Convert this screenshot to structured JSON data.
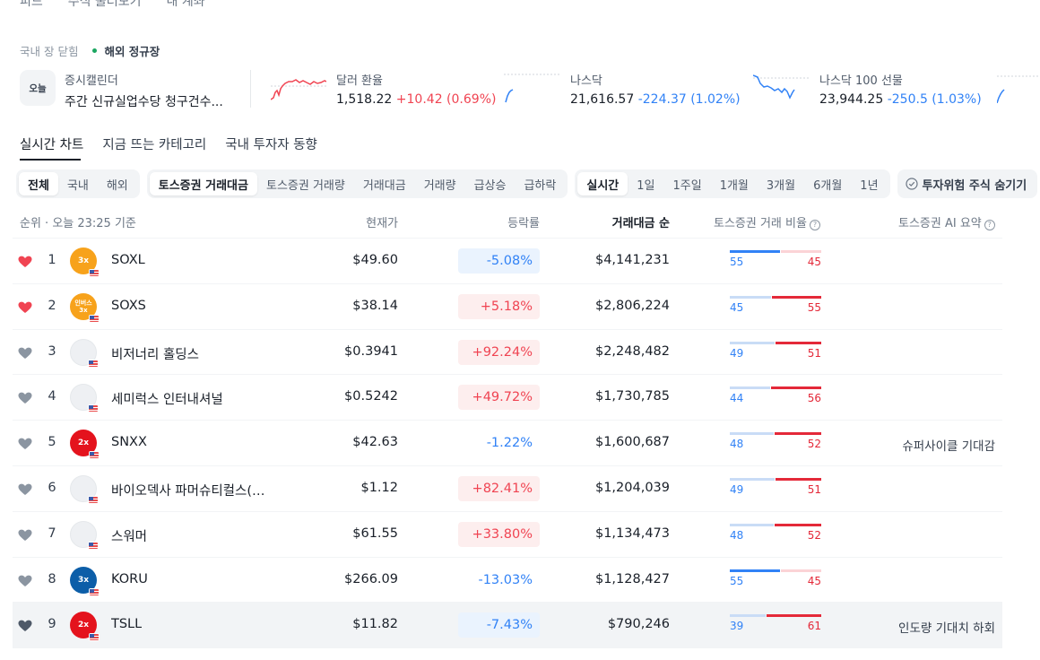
{
  "nav": {
    "items": [
      "피드",
      "주식 둘러보기",
      "내 계좌"
    ]
  },
  "market_status": {
    "domestic": "국내 장 닫힘",
    "overseas": "해외 정규장"
  },
  "ticker": {
    "calendar": {
      "badge": "오늘",
      "label": "증시캘린더",
      "text": "주간 신규실업수당 청구건수..."
    },
    "usdkrw": {
      "label": "달러 환율",
      "value": "1,518.22",
      "change": "+10.42 (0.69%)"
    },
    "nasdaq": {
      "label": "나스닥",
      "value": "21,616.57",
      "change": "-224.37 (1.02%)"
    },
    "nasdaq100": {
      "label": "나스닥 100 선물",
      "value": "23,944.25",
      "change": "-250.5 (1.03%)"
    }
  },
  "tabs": [
    "실시간 차트",
    "지금 뜨는 카테고리",
    "국내 투자자 동향"
  ],
  "filters": {
    "region": [
      "전체",
      "국내",
      "해외"
    ],
    "metric": [
      "토스증권 거래대금",
      "토스증권 거래량",
      "거래대금",
      "거래량",
      "급상승",
      "급하락"
    ],
    "period": [
      "실시간",
      "1일",
      "1주일",
      "1개월",
      "3개월",
      "6개월",
      "1년"
    ],
    "hide_risk": "투자위험 주식 숨기기"
  },
  "table": {
    "headers": {
      "rank": "순위 · 오늘 23:25 기준",
      "price": "현재가",
      "change": "등락률",
      "amount": "거래대금 순",
      "ratio": "토스증권 거래 비율",
      "ai": "토스증권 AI 요약"
    },
    "rows": [
      {
        "rank": "1",
        "name": "SOXL",
        "price": "$49.60",
        "change": "-5.08%",
        "amount": "$4,141,231",
        "buy": "55",
        "sell": "45",
        "ai": "",
        "fav": true,
        "logo": "3x",
        "logo_color": "#f7a21b"
      },
      {
        "rank": "2",
        "name": "SOXS",
        "price": "$38.14",
        "change": "+5.18%",
        "amount": "$2,806,224",
        "buy": "45",
        "sell": "55",
        "ai": "",
        "fav": true,
        "logo": "인버스 3x",
        "logo_color": "#f7a21b"
      },
      {
        "rank": "3",
        "name": "비저너리 홀딩스",
        "price": "$0.3941",
        "change": "+92.24%",
        "amount": "$2,248,482",
        "buy": "49",
        "sell": "51",
        "ai": "",
        "fav": false,
        "logo": "",
        "logo_color": "#eef0f3"
      },
      {
        "rank": "4",
        "name": "세미럭스 인터내셔널",
        "price": "$0.5242",
        "change": "+49.72%",
        "amount": "$1,730,785",
        "buy": "44",
        "sell": "56",
        "ai": "",
        "fav": false,
        "logo": "",
        "logo_color": "#eef0f3"
      },
      {
        "rank": "5",
        "name": "SNXX",
        "price": "$42.63",
        "change": "-1.22%",
        "amount": "$1,600,687",
        "buy": "48",
        "sell": "52",
        "ai": "슈퍼사이클 기대감",
        "fav": false,
        "logo": "2x",
        "logo_color": "#e4131d"
      },
      {
        "rank": "6",
        "name": "바이오덱사 파머슈티컬스(A...",
        "price": "$1.12",
        "change": "+82.41%",
        "amount": "$1,204,039",
        "buy": "49",
        "sell": "51",
        "ai": "",
        "fav": false,
        "logo": "",
        "logo_color": "#eef0f3"
      },
      {
        "rank": "7",
        "name": "스워머",
        "price": "$61.55",
        "change": "+33.80%",
        "amount": "$1,134,473",
        "buy": "48",
        "sell": "52",
        "ai": "",
        "fav": false,
        "logo": "",
        "logo_color": "#eef0f3"
      },
      {
        "rank": "8",
        "name": "KORU",
        "price": "$266.09",
        "change": "-13.03%",
        "amount": "$1,128,427",
        "buy": "55",
        "sell": "45",
        "ai": "",
        "fav": false,
        "logo": "3x",
        "logo_color": "#0c5ea8"
      },
      {
        "rank": "9",
        "name": "TSLL",
        "price": "$11.82",
        "change": "-7.43%",
        "amount": "$790,246",
        "buy": "39",
        "sell": "61",
        "ai": "인도량 기대치 하회",
        "fav": false,
        "logo": "2x",
        "logo_color": "#e4131d"
      }
    ]
  },
  "colors": {
    "up": "#f04452",
    "down": "#3182f6",
    "fav": "#f04452",
    "unfav": "#8b95a1"
  },
  "icons": {
    "heart": "heart-icon",
    "check": "check-circle-icon",
    "help": "question-circle-icon",
    "flag": "us-flag-icon"
  }
}
